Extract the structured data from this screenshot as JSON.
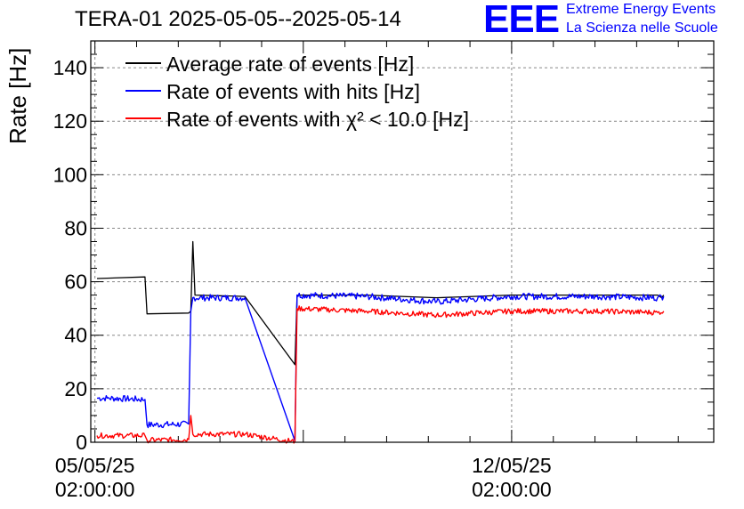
{
  "header": {
    "title": "TERA-01 2025-05-05--2025-05-14",
    "logo_text": "EEE",
    "logo_line1": "Extreme Energy Events",
    "logo_line2": "La Scienza nelle Scuole"
  },
  "colors": {
    "average": "#000000",
    "hits": "#0000ff",
    "chi2": "#ff0000",
    "logo": "#0000ff"
  },
  "chart_data": {
    "type": "line",
    "title": "TERA-01 2025-05-05--2025-05-14",
    "ylabel": "Rate [Hz]",
    "xlabel": "",
    "ylim": [
      0,
      150
    ],
    "yticks": [
      0,
      20,
      40,
      60,
      80,
      100,
      120,
      140
    ],
    "x_unit": "days since 05/05/25 02:00:00",
    "xlim": [
      -0.1,
      14.85
    ],
    "xticks": [
      {
        "x": 0,
        "label_line1": "05/05/25",
        "label_line2": "02:00:00"
      },
      {
        "x": 10,
        "label_line1": "12/05/25",
        "label_line2": "02:00:00"
      }
    ],
    "grid": true,
    "legend_position": "top-left",
    "series": [
      {
        "name": "Average rate of events [Hz]",
        "color": "#000000",
        "points": [
          [
            0.05,
            61.2
          ],
          [
            1.2,
            61.8
          ],
          [
            1.25,
            48
          ],
          [
            2.25,
            48.3
          ],
          [
            2.3,
            49
          ],
          [
            2.35,
            75
          ],
          [
            2.4,
            55
          ],
          [
            3.6,
            54.5
          ],
          [
            4.8,
            29
          ],
          [
            4.85,
            55
          ],
          [
            6.5,
            55
          ],
          [
            8.2,
            54
          ],
          [
            10.0,
            55
          ],
          [
            12.0,
            55
          ],
          [
            13.5,
            55
          ],
          [
            13.6,
            54
          ],
          [
            13.65,
            55
          ]
        ]
      },
      {
        "name": "Rate of events with hits [Hz]",
        "color": "#0000ff",
        "noise": 1.2,
        "points": [
          [
            0.05,
            16.5
          ],
          [
            0.3,
            16.5
          ],
          [
            1.2,
            16
          ],
          [
            1.25,
            6.5
          ],
          [
            2.25,
            6.8
          ],
          [
            2.3,
            49
          ],
          [
            2.35,
            54
          ],
          [
            3.6,
            54
          ],
          [
            4.8,
            0.5
          ],
          [
            4.85,
            55
          ],
          [
            6.5,
            54.5
          ],
          [
            8.2,
            52.5
          ],
          [
            10.0,
            54.5
          ],
          [
            12.0,
            54.5
          ],
          [
            13.5,
            54
          ],
          [
            13.65,
            54.5
          ]
        ]
      },
      {
        "name": "Rate of events with χ² < 10.0 [Hz]",
        "color": "#ff0000",
        "noise": 1.0,
        "points": [
          [
            0.05,
            2.5
          ],
          [
            1.2,
            2.5
          ],
          [
            1.25,
            0.8
          ],
          [
            2.25,
            1
          ],
          [
            2.3,
            10
          ],
          [
            2.35,
            3
          ],
          [
            3.6,
            3
          ],
          [
            4.8,
            0.2
          ],
          [
            4.85,
            50
          ],
          [
            6.5,
            49
          ],
          [
            8.2,
            47.5
          ],
          [
            10.0,
            49
          ],
          [
            12.0,
            49
          ],
          [
            13.5,
            48.5
          ],
          [
            13.65,
            49
          ]
        ]
      }
    ]
  }
}
